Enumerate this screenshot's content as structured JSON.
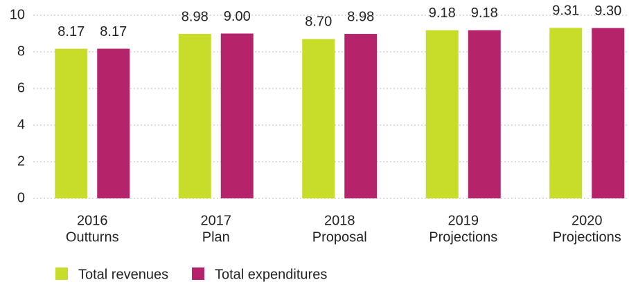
{
  "chart_data": {
    "type": "bar",
    "categories": [
      [
        "2016",
        "Outturns"
      ],
      [
        "2017",
        "Plan"
      ],
      [
        "2018",
        "Proposal"
      ],
      [
        "2019",
        "Projections"
      ],
      [
        "2020",
        "Projections"
      ]
    ],
    "series": [
      {
        "name": "Total revenues",
        "color": "#c8dc2a",
        "values": [
          8.17,
          8.98,
          8.7,
          9.18,
          9.31
        ],
        "value_labels": [
          "8.17",
          "8.98",
          "8.70",
          "9.18",
          "9.31"
        ]
      },
      {
        "name": "Total expenditures",
        "color": "#b5246a",
        "values": [
          8.17,
          9,
          8.98,
          9.18,
          9.3
        ],
        "value_labels": [
          "8.17",
          "9.00",
          "8.98",
          "9.18",
          "9.30"
        ]
      }
    ],
    "ylim": [
      0,
      10
    ],
    "yticks": [
      0,
      2,
      4,
      6,
      8,
      10
    ],
    "grid": true,
    "legend": "bottom"
  }
}
